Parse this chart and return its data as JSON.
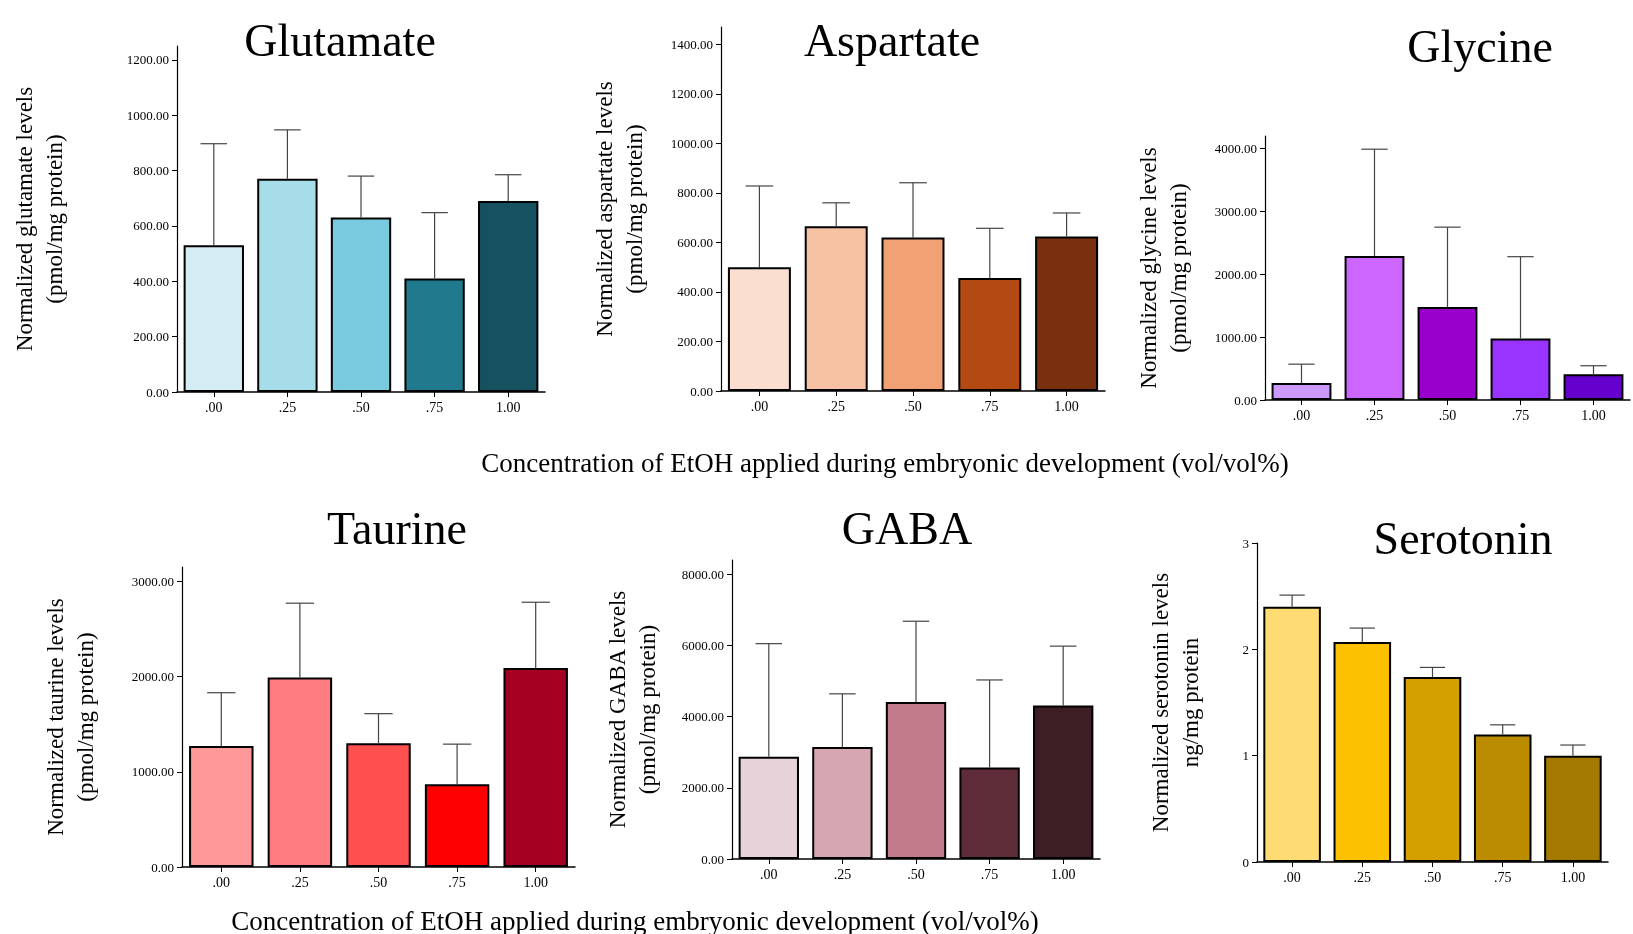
{
  "chart_data": [
    {
      "type": "bar",
      "title": "Glutamate",
      "ylabel": "Normalized glutamate levels\n(pmol/mg protein)",
      "categories": [
        ".00",
        ".25",
        ".50",
        ".75",
        "1.00"
      ],
      "values": [
        530,
        770,
        630,
        410,
        690
      ],
      "colors": [
        "#d4edf4",
        "#a6dde9",
        "#79c9df",
        "#21798d",
        "#165160"
      ],
      "errors": [
        [
          530,
          897
        ],
        [
          770,
          947
        ],
        [
          630,
          780
        ],
        [
          410,
          648
        ],
        [
          690,
          785
        ]
      ],
      "ylim": [
        0,
        1250
      ],
      "yticks": [
        {
          "value": 0,
          "label": "0.00"
        },
        {
          "value": 200,
          "label": "200.00"
        },
        {
          "value": 400,
          "label": "400.00"
        },
        {
          "value": 600,
          "label": "600.00"
        },
        {
          "value": 800,
          "label": "800.00"
        },
        {
          "value": 1000,
          "label": "1000.00"
        },
        {
          "value": 1200,
          "label": "1200.00"
        }
      ]
    },
    {
      "type": "bar",
      "title": "Aspartate",
      "xlabel": "Concentration of EtOH applied during embryonic development (vol/vol%)",
      "ylabel": "Normalized aspartate levels\n(pmol/mg protein)",
      "categories": [
        ".00",
        ".25",
        ".50",
        ".75",
        "1.00"
      ],
      "values": [
        500,
        665,
        620,
        456,
        624
      ],
      "colors": [
        "#fadfd1",
        "#f6c2a3",
        "#f2a175",
        "#b44a13",
        "#7a300e"
      ],
      "errors": [
        [
          500,
          828
        ],
        [
          665,
          760
        ],
        [
          620,
          841
        ],
        [
          456,
          657
        ],
        [
          624,
          719
        ]
      ],
      "ylim": [
        0,
        1470
      ],
      "yticks": [
        {
          "value": 0,
          "label": "0.00"
        },
        {
          "value": 200,
          "label": "200.00"
        },
        {
          "value": 400,
          "label": "400.00"
        },
        {
          "value": 600,
          "label": "600.00"
        },
        {
          "value": 800,
          "label": "800.00"
        },
        {
          "value": 1000,
          "label": "1000.00"
        },
        {
          "value": 1200,
          "label": "1200.00"
        },
        {
          "value": 1400,
          "label": "1400.00"
        }
      ]
    },
    {
      "type": "bar",
      "title": "Glycine",
      "ylabel": "Normalized glycine levels\n(pmol/mg protein)",
      "categories": [
        ".00",
        ".25",
        ".50",
        ".75",
        "1.00"
      ],
      "values": [
        270,
        2290,
        1480,
        980,
        410
      ],
      "colors": [
        "#cc99ff",
        "#cc66ff",
        "#9900cc",
        "#9933ff",
        "#6600cc"
      ],
      "errors": [
        [
          270,
          570
        ],
        [
          2290,
          3990
        ],
        [
          1480,
          2750
        ],
        [
          980,
          2280
        ],
        [
          410,
          545
        ]
      ],
      "ylim": [
        0,
        4200
      ],
      "yticks": [
        {
          "value": 0,
          "label": "0.00"
        },
        {
          "value": 1000,
          "label": "1000.00"
        },
        {
          "value": 2000,
          "label": "2000.00"
        },
        {
          "value": 3000,
          "label": "3000.00"
        },
        {
          "value": 4000,
          "label": "4000.00"
        }
      ]
    },
    {
      "type": "bar",
      "title": "Taurine",
      "xlabel": "Concentration of EtOH applied during embryonic development (vol/vol%)",
      "ylabel": "Normalized taurine levels\n(pmol/mg protein)",
      "categories": [
        ".00",
        ".25",
        ".50",
        ".75",
        "1.00"
      ],
      "values": [
        1270,
        1990,
        1300,
        870,
        2090
      ],
      "colors": [
        "#ff9999",
        "#ff7c80",
        "#ff5050",
        "#ff0000",
        "#a50021"
      ],
      "errors": [
        [
          1270,
          1830
        ],
        [
          1990,
          2770
        ],
        [
          1300,
          1610
        ],
        [
          870,
          1290
        ],
        [
          2090,
          2780
        ]
      ],
      "ylim": [
        0,
        3150
      ],
      "yticks": [
        {
          "value": 0,
          "label": "0.00"
        },
        {
          "value": 1000,
          "label": "1000.00"
        },
        {
          "value": 2000,
          "label": "2000.00"
        },
        {
          "value": 3000,
          "label": "3000.00"
        }
      ]
    },
    {
      "type": "bar",
      "title": "GABA",
      "ylabel": "Normalized GABA levels\n(pmol/mg protein)",
      "categories": [
        ".00",
        ".25",
        ".50",
        ".75",
        "1.00"
      ],
      "values": [
        2870,
        3150,
        4410,
        2570,
        4310
      ],
      "colors": [
        "#e8d2d9",
        "#d6a7b1",
        "#c07a89",
        "#5e2c39",
        "#3e1e25"
      ],
      "errors": [
        [
          2870,
          6050
        ],
        [
          3150,
          4640
        ],
        [
          4410,
          6680
        ],
        [
          2570,
          5030
        ],
        [
          4310,
          5980
        ]
      ],
      "ylim": [
        0,
        8400
      ],
      "yticks": [
        {
          "value": 0,
          "label": "0.00"
        },
        {
          "value": 2000,
          "label": "2000.00"
        },
        {
          "value": 4000,
          "label": "4000.00"
        },
        {
          "value": 6000,
          "label": "6000.00"
        },
        {
          "value": 8000,
          "label": "8000.00"
        }
      ]
    },
    {
      "type": "bar",
      "title": "Serotonin",
      "ylabel": "Normalized serotonin levels\nng/mg protein",
      "categories": [
        ".00",
        ".25",
        ".50",
        ".75",
        "1.00"
      ],
      "values": [
        2.4,
        2.07,
        1.74,
        1.2,
        1.0
      ],
      "colors": [
        "#ffdc73",
        "#fcc100",
        "#d4a000",
        "#bc8c00",
        "#a47900"
      ],
      "errors": [
        [
          2.4,
          2.51
        ],
        [
          2.07,
          2.2
        ],
        [
          1.74,
          1.83
        ],
        [
          1.2,
          1.29
        ],
        [
          1.0,
          1.1
        ]
      ],
      "ylim": [
        0,
        3
      ],
      "yticks": [
        0,
        1,
        2,
        3
      ]
    }
  ]
}
